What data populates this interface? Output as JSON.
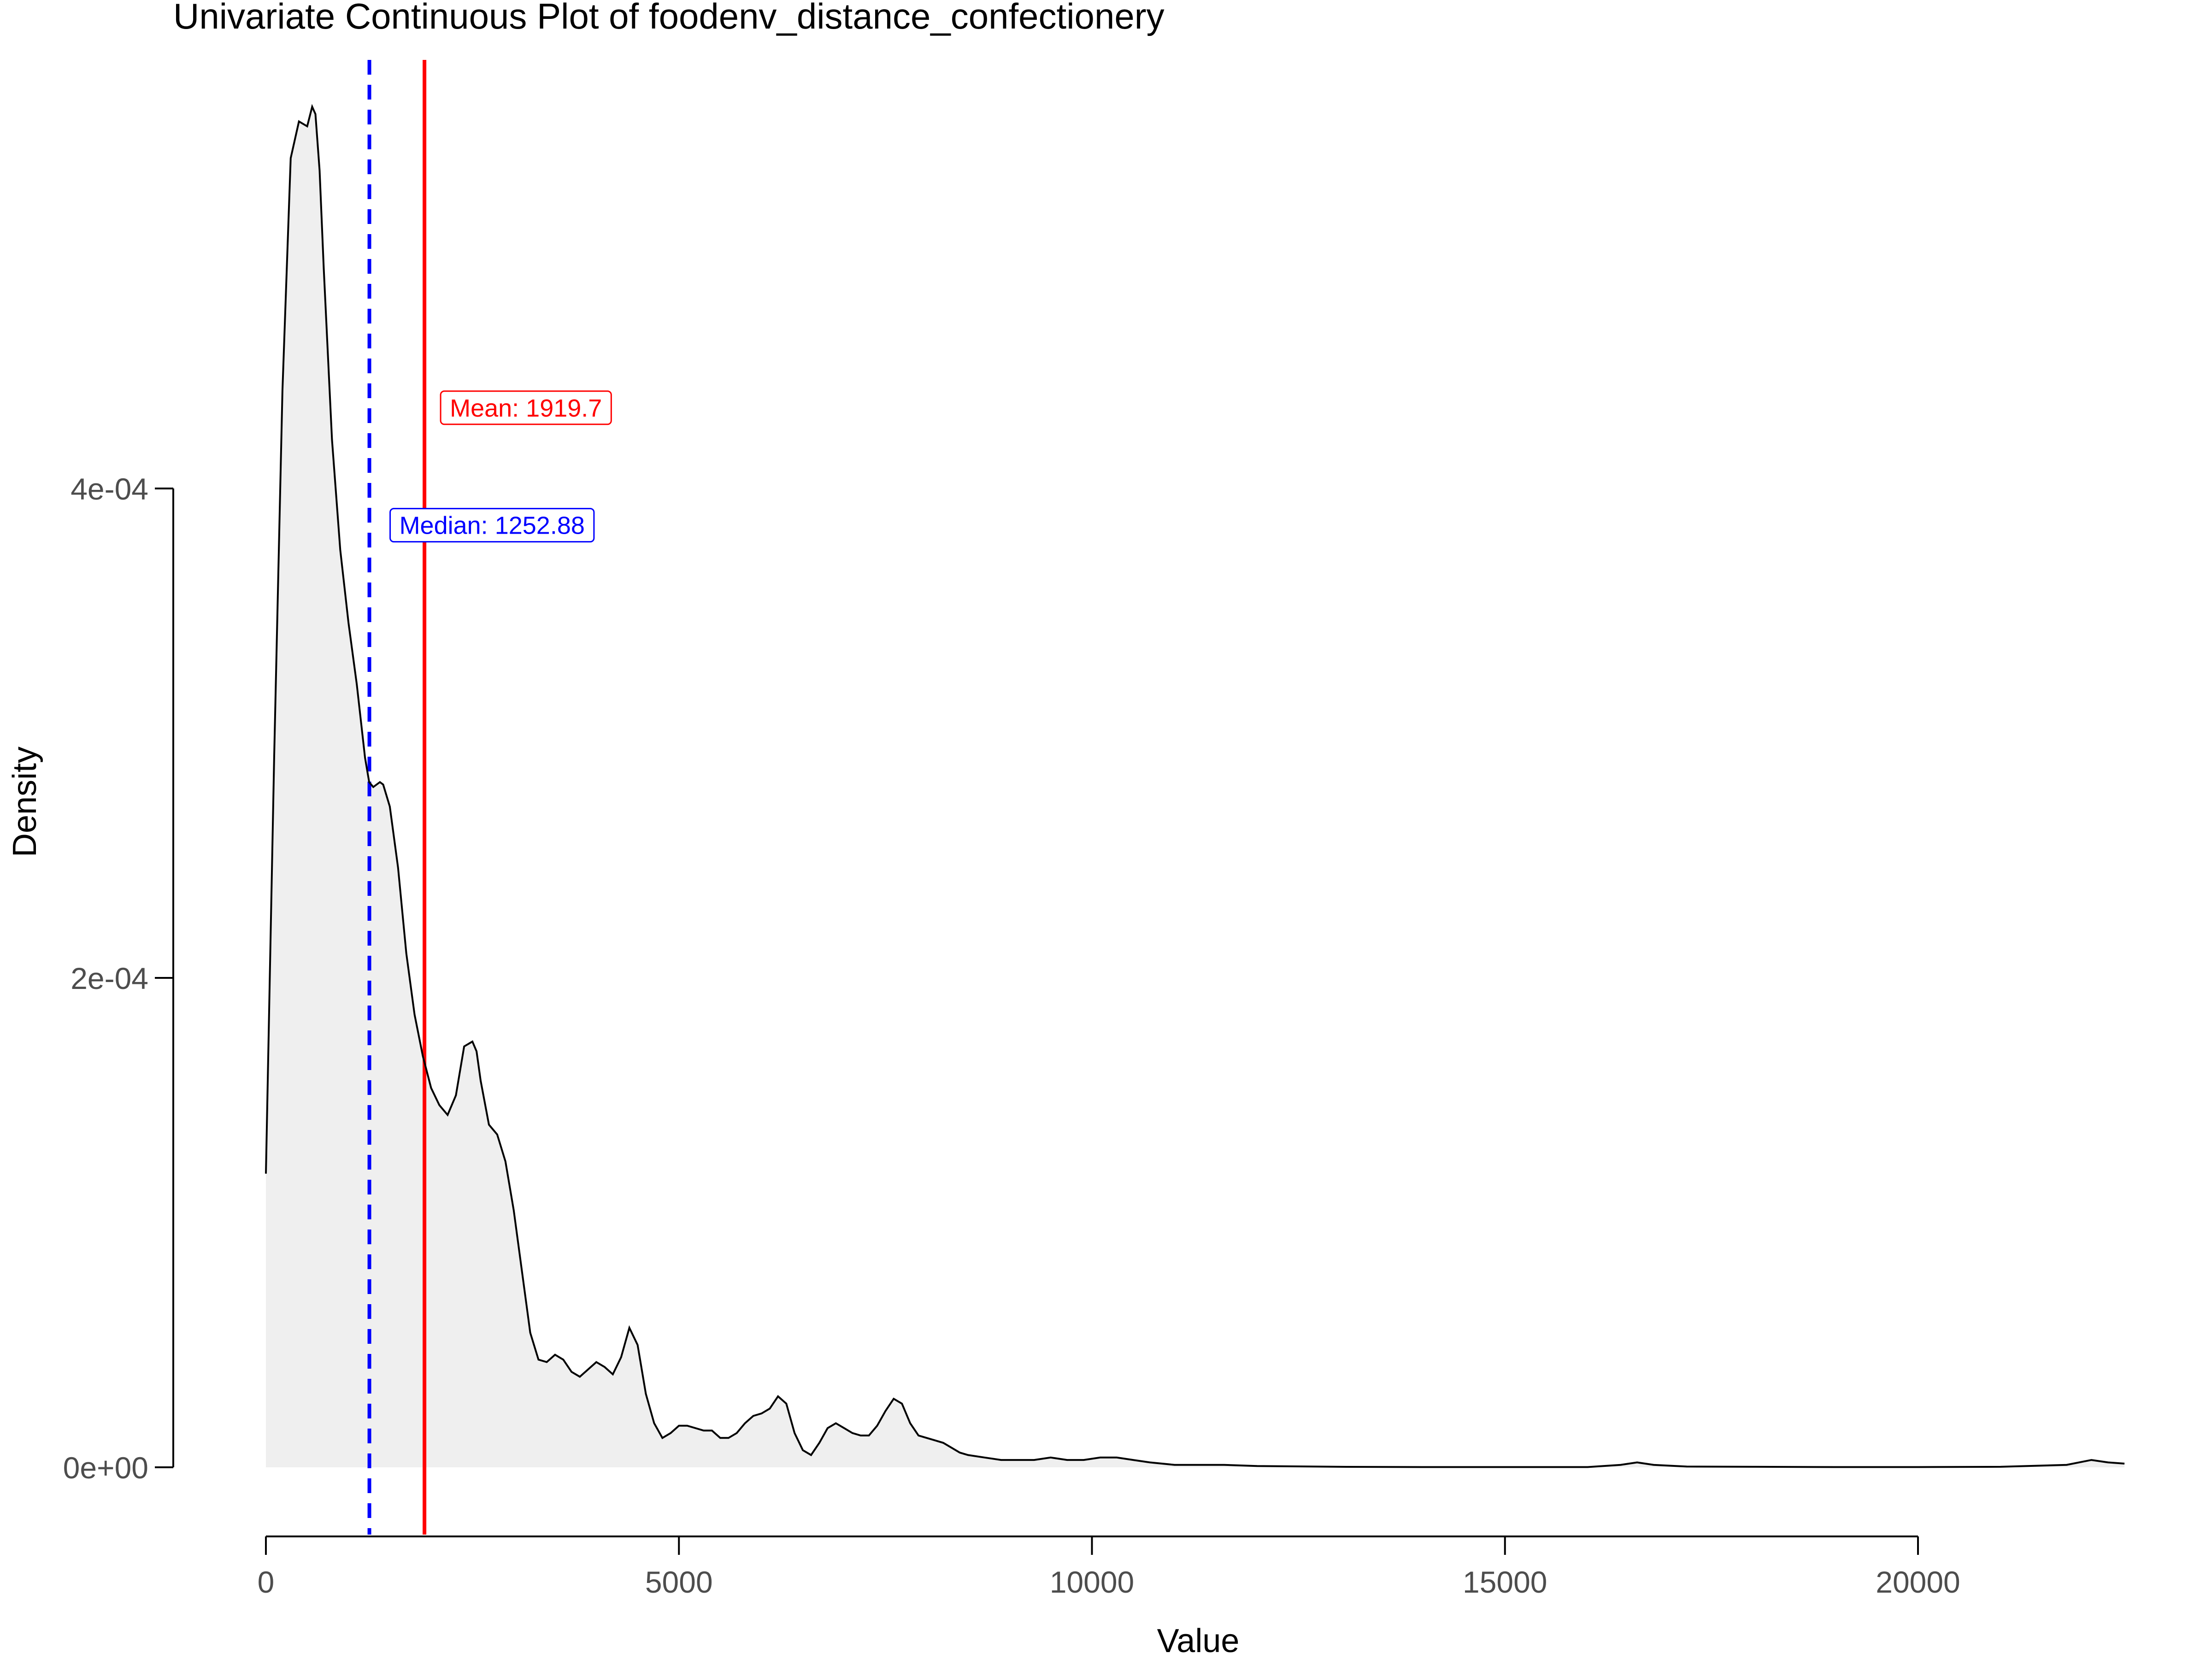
{
  "chart_data": {
    "type": "area",
    "title": "Univariate Continuous Plot of foodenv_distance_confectionery",
    "xlabel": "Value",
    "ylabel": "Density",
    "xlim": [
      0,
      22500
    ],
    "ylim": [
      -2e-05,
      0.00058
    ],
    "x_ticks": [
      0,
      5000,
      10000,
      15000,
      20000
    ],
    "x_tick_labels": [
      "0",
      "5000",
      "10000",
      "15000",
      "20000"
    ],
    "y_ticks": [
      0,
      0.0002,
      0.0004
    ],
    "y_tick_labels": [
      "0e+00",
      "2e-04",
      "4e-04"
    ],
    "grid": false,
    "legend": "none",
    "colors": {
      "density_line": "#000000",
      "density_fill": "#efefef",
      "mean": "#ff0000",
      "median": "#0000ff"
    },
    "series": [
      {
        "x": [
          0,
          100,
          200,
          300,
          400,
          500,
          560,
          600,
          650,
          700,
          800,
          900,
          1000,
          1100,
          1200,
          1250,
          1300,
          1380,
          1420,
          1500,
          1600,
          1700,
          1800,
          1900,
          2000,
          2100,
          2200,
          2300,
          2400,
          2500,
          2550,
          2600,
          2700,
          2800,
          2900,
          3000,
          3100,
          3200,
          3300,
          3400,
          3500,
          3600,
          3700,
          3800,
          3900,
          4000,
          4100,
          4200,
          4300,
          4400,
          4500,
          4600,
          4700,
          4800,
          4900,
          5000,
          5100,
          5200,
          5300,
          5400,
          5500,
          5600,
          5700,
          5800,
          5900,
          6000,
          6100,
          6200,
          6300,
          6400,
          6500,
          6600,
          6700,
          6800,
          6900,
          7000,
          7100,
          7200,
          7300,
          7400,
          7500,
          7600,
          7700,
          7800,
          7900,
          8000,
          8100,
          8200,
          8300,
          8400,
          8500,
          8700,
          8900,
          9100,
          9300,
          9500,
          9700,
          9900,
          10100,
          10300,
          10500,
          10700,
          11000,
          11300,
          11600,
          12000,
          13000,
          14000,
          15000,
          16000,
          16400,
          16600,
          16800,
          17200,
          18000,
          19000,
          20000,
          21000,
          21800,
          22100,
          22300,
          22500
        ],
        "y": [
          0.00012,
          0.00029,
          0.00044,
          0.000535,
          0.00055,
          0.000548,
          0.000556,
          0.000553,
          0.00053,
          0.00049,
          0.00042,
          0.000375,
          0.000345,
          0.00032,
          0.00029,
          0.00028,
          0.000278,
          0.00028,
          0.000279,
          0.00027,
          0.000245,
          0.00021,
          0.000185,
          0.000168,
          0.000155,
          0.000148,
          0.000144,
          0.000152,
          0.000172,
          0.000174,
          0.00017,
          0.000158,
          0.00014,
          0.000136,
          0.000125,
          0.000105,
          8e-05,
          5.5e-05,
          4.4e-05,
          4.3e-05,
          4.6e-05,
          4.4e-05,
          3.9e-05,
          3.7e-05,
          4e-05,
          4.3e-05,
          4.1e-05,
          3.8e-05,
          4.5e-05,
          5.7e-05,
          5e-05,
          3e-05,
          1.8e-05,
          1.2e-05,
          1.4e-05,
          1.7e-05,
          1.7e-05,
          1.6e-05,
          1.5e-05,
          1.5e-05,
          1.2e-05,
          1.2e-05,
          1.4e-05,
          1.8e-05,
          2.1e-05,
          2.2e-05,
          2.4e-05,
          2.9e-05,
          2.6e-05,
          1.4e-05,
          7e-06,
          5e-06,
          1e-05,
          1.6e-05,
          1.8e-05,
          1.6e-05,
          1.4e-05,
          1.3e-05,
          1.3e-05,
          1.7e-05,
          2.3e-05,
          2.8e-05,
          2.6e-05,
          1.8e-05,
          1.3e-05,
          1.2e-05,
          1.1e-05,
          1e-05,
          8e-06,
          6e-06,
          5e-06,
          4e-06,
          3e-06,
          3e-06,
          3e-06,
          4e-06,
          3e-06,
          3e-06,
          4e-06,
          4e-06,
          3e-06,
          2e-06,
          1e-06,
          1e-06,
          1e-06,
          5e-07,
          2e-07,
          1e-07,
          1e-07,
          1e-07,
          1e-06,
          2e-06,
          1e-06,
          3e-07,
          2e-07,
          1e-07,
          1e-07,
          2e-07,
          1e-06,
          3e-06,
          2e-06,
          1.5e-06
        ]
      }
    ],
    "annotations": [
      {
        "type": "vline",
        "style": "solid",
        "color": "#ff0000",
        "x": 1919.7,
        "label": "Mean: 1919.7",
        "label_y": 0.000433
      },
      {
        "type": "vline",
        "style": "dashed",
        "color": "#0000ff",
        "x": 1252.88,
        "label": "Median: 1252.88",
        "label_y": 0.000385
      }
    ]
  }
}
